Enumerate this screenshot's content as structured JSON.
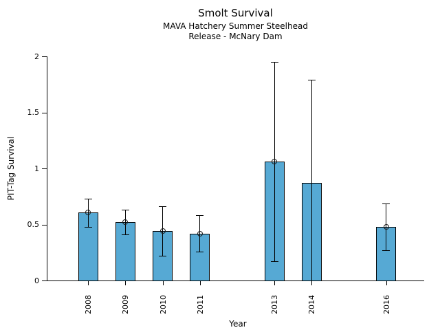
{
  "chart_data": {
    "type": "bar",
    "title": "Smolt Survival",
    "subtitle": [
      "MAVA Hatchery Summer Steelhead",
      "Release - McNary Dam"
    ],
    "xlabel": "Year",
    "ylabel": "PIT-Tag Survival",
    "categories": [
      "2008",
      "2009",
      "2010",
      "2011",
      "2013",
      "2014",
      "2016"
    ],
    "series": [
      {
        "year": 2008,
        "label": "2008",
        "value": 0.61,
        "ci_low": 0.48,
        "ci_high": 0.73,
        "marker": true,
        "cap_low": true
      },
      {
        "year": 2009,
        "label": "2009",
        "value": 0.52,
        "ci_low": 0.41,
        "ci_high": 0.63,
        "marker": true,
        "cap_low": true
      },
      {
        "year": 2010,
        "label": "2010",
        "value": 0.44,
        "ci_low": 0.22,
        "ci_high": 0.66,
        "marker": true,
        "cap_low": true
      },
      {
        "year": 2011,
        "label": "2011",
        "value": 0.42,
        "ci_low": 0.26,
        "ci_high": 0.58,
        "marker": true,
        "cap_low": true
      },
      {
        "year": 2013,
        "label": "2013",
        "value": 1.06,
        "ci_low": 0.17,
        "ci_high": 1.95,
        "marker": true,
        "cap_low": true
      },
      {
        "year": 2014,
        "label": "2014",
        "value": 0.87,
        "ci_low": 0.0,
        "ci_high": 1.79,
        "marker": false,
        "cap_low": false
      },
      {
        "year": 2016,
        "label": "2016",
        "value": 0.48,
        "ci_low": 0.27,
        "ci_high": 0.69,
        "marker": true,
        "cap_low": true
      }
    ],
    "ylim": [
      0,
      2
    ],
    "xlim": [
      2006.89,
      2017.02
    ],
    "yticks": [
      0,
      0.5,
      1,
      1.5,
      2
    ],
    "ytick_labels": [
      "0",
      "0.5",
      "1",
      "1.5",
      "2"
    ],
    "grid": false,
    "legend": false,
    "bar_color": "#56A9D4",
    "bar_edge_color": "#000000",
    "error_bar_color": "#000000",
    "marker_style": "open-circle"
  }
}
